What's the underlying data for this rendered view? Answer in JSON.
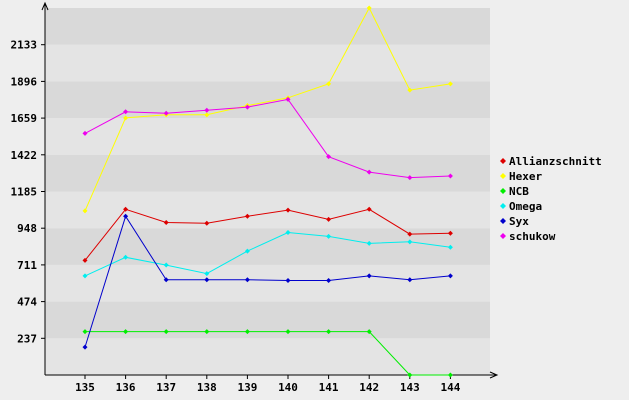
{
  "chart_data": {
    "type": "line",
    "title": "",
    "xlabel": "",
    "ylabel": "",
    "x": [
      135,
      136,
      137,
      138,
      139,
      140,
      141,
      142,
      143,
      144
    ],
    "categories": [
      "135",
      "136",
      "137",
      "138",
      "139",
      "140",
      "141",
      "142",
      "143",
      "144"
    ],
    "yticks": [
      237,
      474,
      711,
      948,
      1185,
      1422,
      1659,
      1896,
      2133
    ],
    "ylim": [
      0,
      2370
    ],
    "grid": "horizontal bands",
    "legend_position": "right",
    "series": [
      {
        "name": "Allianzschnitt",
        "color": "#dd0000",
        "values": [
          740,
          1070,
          985,
          980,
          1025,
          1065,
          1005,
          1070,
          910,
          915
        ]
      },
      {
        "name": "Hexer",
        "color": "#ffff00",
        "values": [
          1060,
          1660,
          1680,
          1680,
          1740,
          1790,
          1880,
          2370,
          1840,
          1880
        ]
      },
      {
        "name": "NCB",
        "color": "#00ee00",
        "values": [
          280,
          280,
          280,
          280,
          280,
          280,
          280,
          280,
          0,
          0
        ]
      },
      {
        "name": "Omega",
        "color": "#00eeee",
        "values": [
          640,
          760,
          710,
          655,
          800,
          920,
          895,
          850,
          860,
          825
        ]
      },
      {
        "name": "Syx",
        "color": "#0000cc",
        "values": [
          180,
          1025,
          615,
          615,
          615,
          610,
          610,
          640,
          615,
          640
        ]
      },
      {
        "name": "schukow",
        "color": "#ee00ee",
        "values": [
          1560,
          1700,
          1690,
          1710,
          1730,
          1780,
          1410,
          1310,
          1275,
          1285
        ]
      }
    ]
  }
}
